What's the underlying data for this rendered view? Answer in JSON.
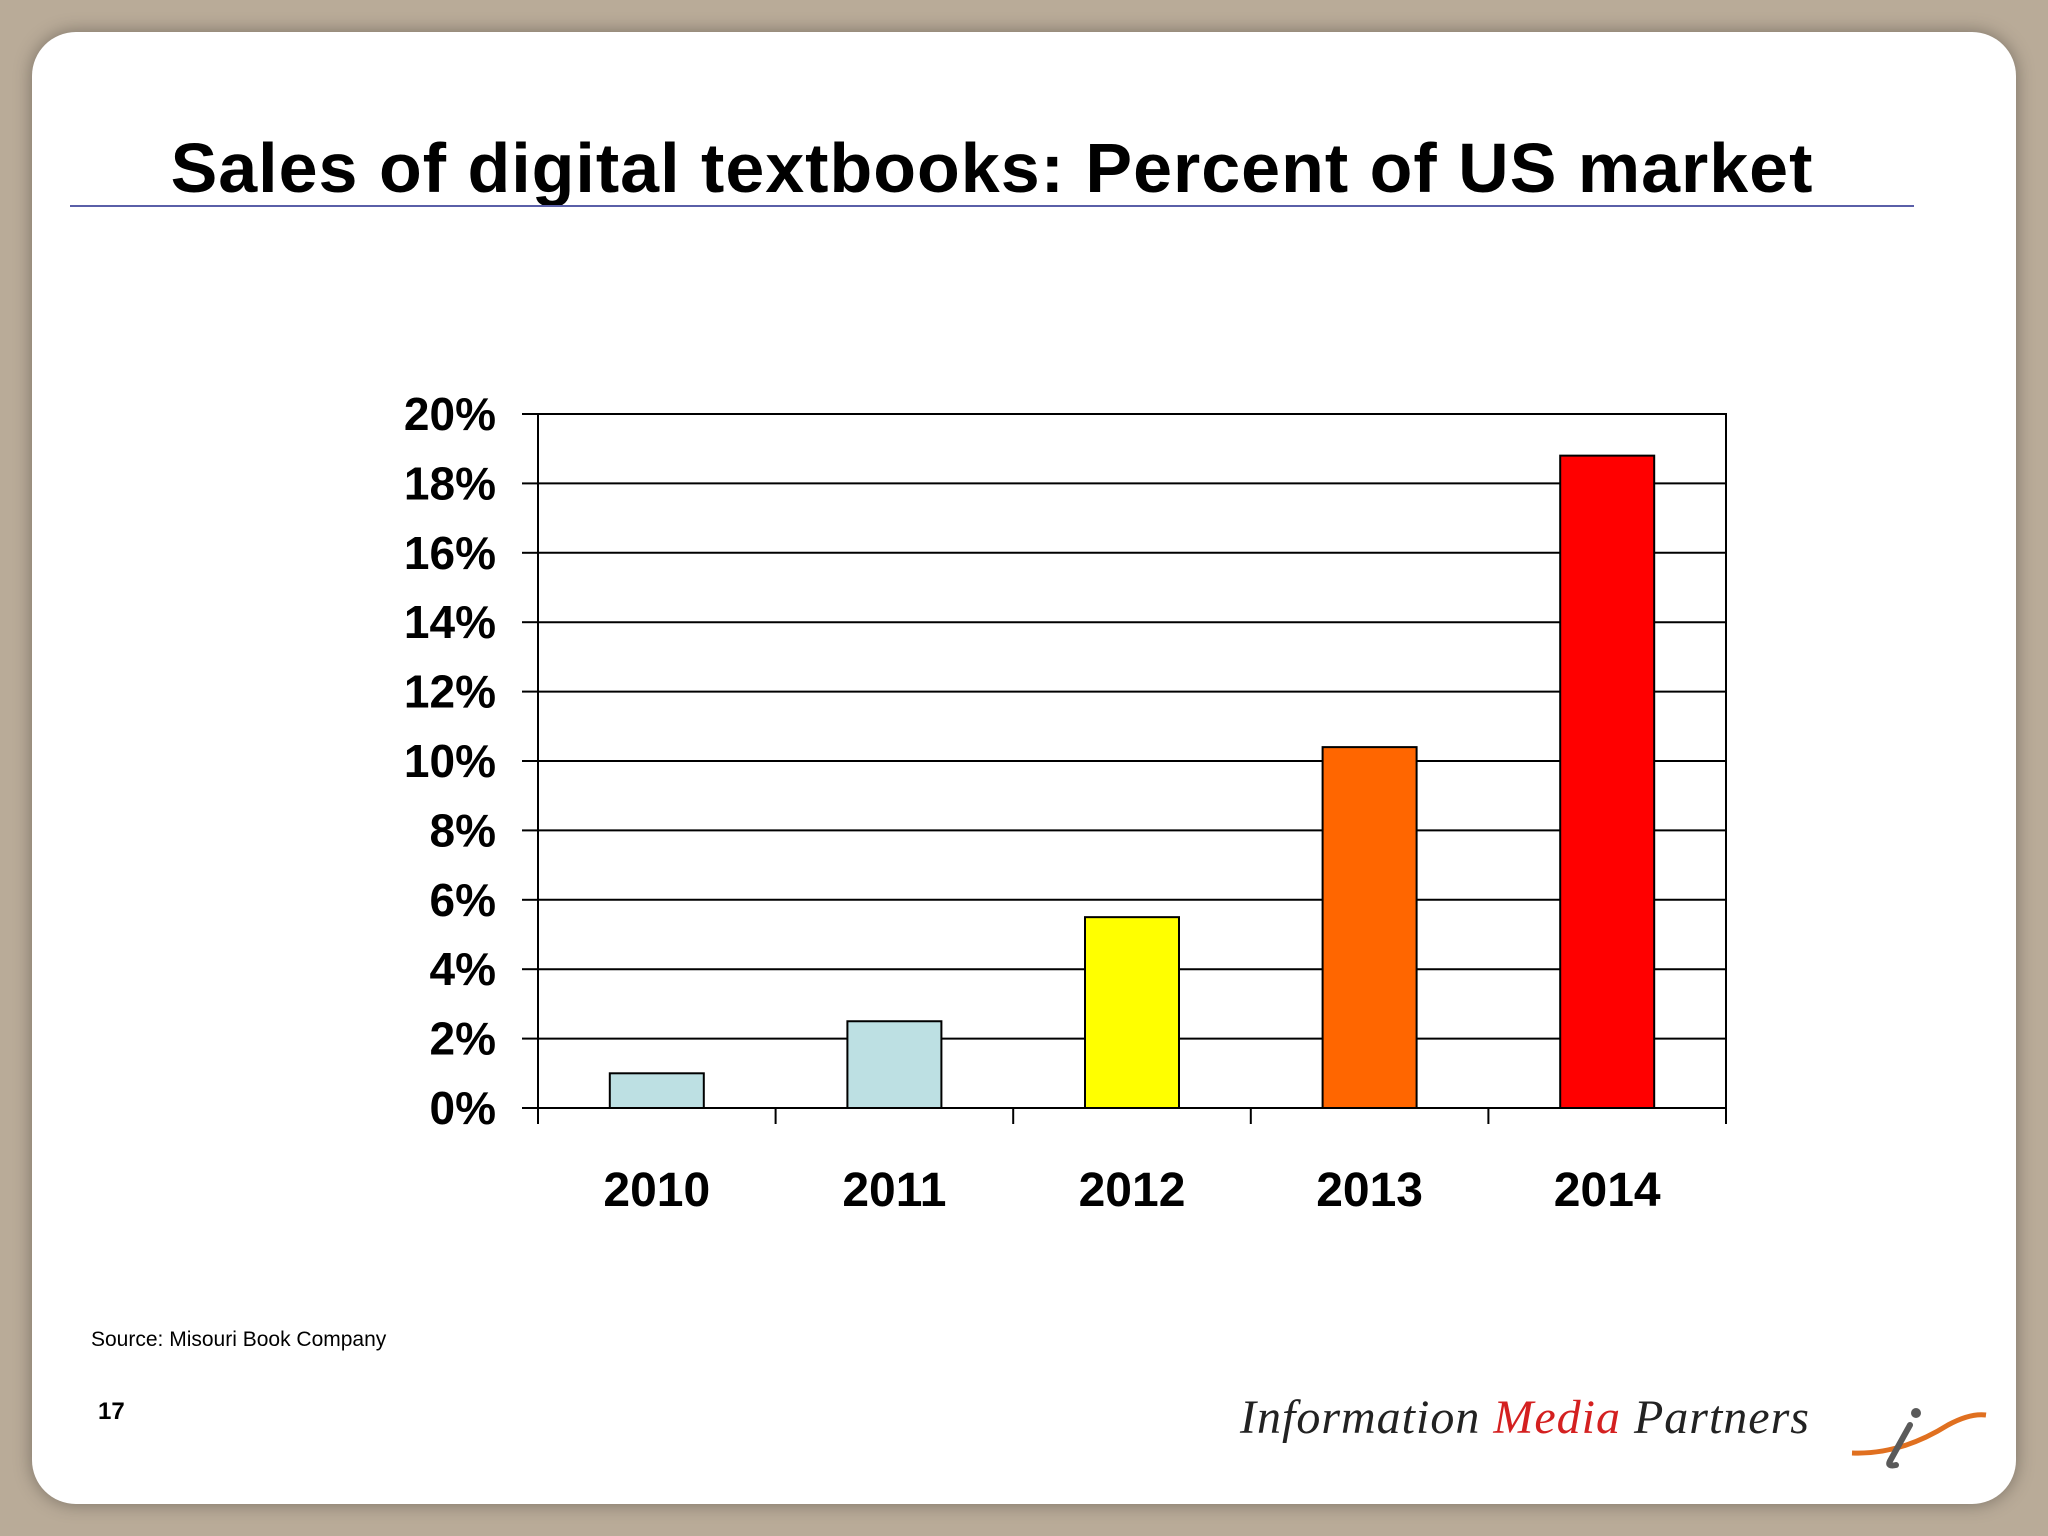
{
  "slide": {
    "title": "Sales of digital textbooks: Percent of US market",
    "source": "Source: Misouri Book Company",
    "page_number": "17",
    "logo": {
      "word1": "Information",
      "word2": "Media",
      "word3": "Partners"
    }
  },
  "colors": {
    "background": "#b9ab98",
    "rule": "#5a5fa8",
    "bar_2010": "#bde0e3",
    "bar_2011": "#bde0e3",
    "bar_2012": "#ffff00",
    "bar_2013": "#ff6600",
    "bar_2014": "#ff0000",
    "logo_accent": "#d42020"
  },
  "chart_data": {
    "type": "bar",
    "title": "Sales of digital textbooks: Percent of US market",
    "xlabel": "",
    "ylabel": "",
    "categories": [
      "2010",
      "2011",
      "2012",
      "2013",
      "2014"
    ],
    "values": [
      1.0,
      2.5,
      5.5,
      10.4,
      18.8
    ],
    "colors": [
      "#bde0e3",
      "#bde0e3",
      "#ffff00",
      "#ff6600",
      "#ff0000"
    ],
    "ylim": [
      0,
      20
    ],
    "yticks": [
      0,
      2,
      4,
      6,
      8,
      10,
      12,
      14,
      16,
      18,
      20
    ],
    "ytick_labels": [
      "0%",
      "2%",
      "4%",
      "6%",
      "8%",
      "10%",
      "12%",
      "14%",
      "16%",
      "18%",
      "20%"
    ],
    "grid": true,
    "legend": "none"
  }
}
